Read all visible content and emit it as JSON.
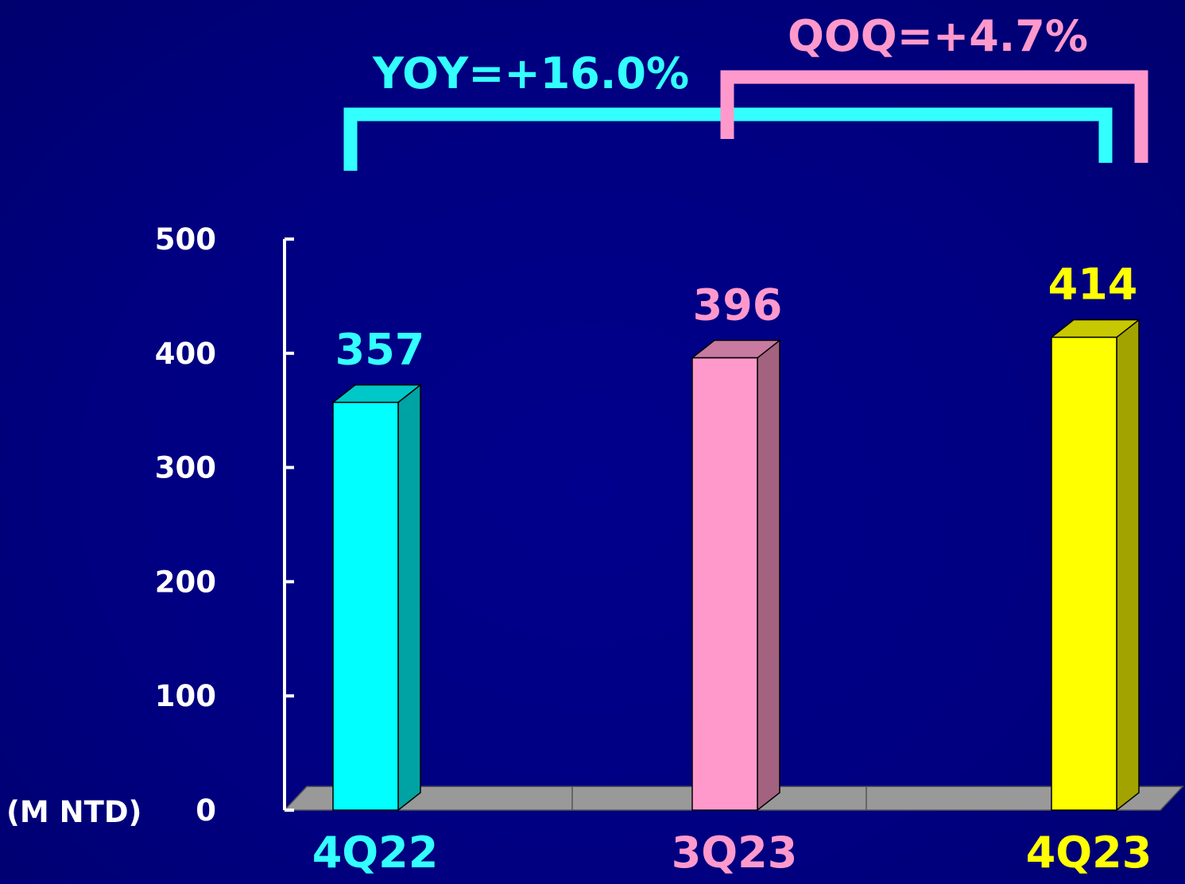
{
  "chart_data": {
    "type": "bar",
    "categories": [
      "4Q22",
      "3Q23",
      "4Q23"
    ],
    "values": [
      357,
      396,
      414
    ],
    "value_labels": [
      "357",
      "396",
      "414"
    ],
    "ylim": [
      0,
      500
    ],
    "yticks": [
      0,
      100,
      200,
      300,
      400,
      500
    ],
    "ytick_labels": [
      "0",
      "100",
      "200",
      "300",
      "400",
      "500"
    ],
    "unit_label": "(M NTD)",
    "bar_colors": {
      "front": [
        "#00FFFF",
        "#FF99CC",
        "#FFFF00"
      ],
      "side": [
        "#00A3A3",
        "#A3627F",
        "#A3A300"
      ],
      "top": [
        "#00C8C8",
        "#C87AA0",
        "#C8C800"
      ]
    },
    "label_colors": [
      "#33FFFF",
      "#FF99CC",
      "#FFFF00"
    ],
    "annotations": [
      {
        "text": "YOY=+16.0%",
        "color": "#33FFFF",
        "from": "4Q22",
        "to": "4Q23"
      },
      {
        "text": "QOQ=+4.7%",
        "color": "#FF99CC",
        "from": "3Q23",
        "to": "4Q23"
      }
    ],
    "floor_color": "#999999",
    "axis_color": "#FFFFFF",
    "grid": false
  }
}
